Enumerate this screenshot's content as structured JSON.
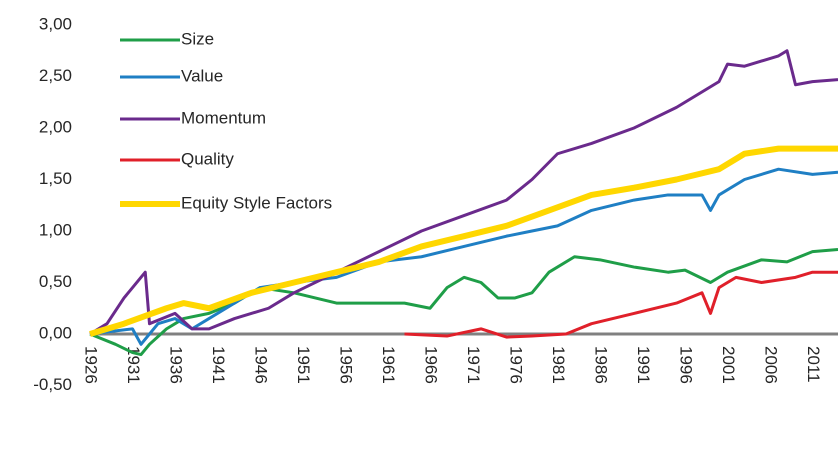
{
  "chart_data": {
    "type": "line",
    "xlim": [
      1926,
      2014
    ],
    "xticks": [
      1926,
      1931,
      1936,
      1941,
      1946,
      1951,
      1956,
      1961,
      1966,
      1971,
      1976,
      1981,
      1986,
      1991,
      1996,
      2001,
      2006,
      2011
    ],
    "ylim": [
      -0.5,
      3.0
    ],
    "yticks": [
      {
        "value": -0.5,
        "label": "-0,50"
      },
      {
        "value": 0,
        "label": "0,00"
      },
      {
        "value": 0.5,
        "label": "0,50"
      },
      {
        "value": 1.0,
        "label": "1,00"
      },
      {
        "value": 1.5,
        "label": "1,50"
      },
      {
        "value": 2.0,
        "label": "2,00"
      },
      {
        "value": 2.5,
        "label": "2,50"
      },
      {
        "value": 3.0,
        "label": "3,00"
      }
    ],
    "grid": false,
    "legend": "top-left",
    "series": [
      {
        "name": "Size",
        "color": "#1f9e48",
        "width": 3,
        "x": [
          1926,
          1929,
          1931,
          1932,
          1933,
          1935,
          1937,
          1940,
          1943,
          1946,
          1950,
          1955,
          1960,
          1963,
          1966,
          1968,
          1970,
          1972,
          1974,
          1976,
          1978,
          1980,
          1983,
          1986,
          1990,
          1994,
          1996,
          1999,
          2001,
          2005,
          2008,
          2011,
          2014
        ],
        "values": [
          0,
          -0.1,
          -0.18,
          -0.2,
          -0.1,
          0.05,
          0.15,
          0.2,
          0.3,
          0.45,
          0.4,
          0.3,
          0.3,
          0.3,
          0.25,
          0.45,
          0.55,
          0.5,
          0.35,
          0.35,
          0.4,
          0.6,
          0.75,
          0.72,
          0.65,
          0.6,
          0.62,
          0.5,
          0.6,
          0.72,
          0.7,
          0.8,
          0.82
        ]
      },
      {
        "name": "Value",
        "color": "#1f7fc4",
        "width": 3,
        "x": [
          1926,
          1931,
          1932,
          1934,
          1936,
          1938,
          1940,
          1943,
          1946,
          1950,
          1955,
          1960,
          1965,
          1970,
          1975,
          1978,
          1981,
          1985,
          1990,
          1994,
          1998,
          1999,
          2000,
          2003,
          2007,
          2011,
          2014
        ],
        "values": [
          0,
          0.05,
          -0.1,
          0.1,
          0.15,
          0.05,
          0.15,
          0.3,
          0.45,
          0.5,
          0.55,
          0.7,
          0.75,
          0.85,
          0.95,
          1.0,
          1.05,
          1.2,
          1.3,
          1.35,
          1.35,
          1.2,
          1.35,
          1.5,
          1.6,
          1.55,
          1.57
        ]
      },
      {
        "name": "Momentum",
        "color": "#6a2a8c",
        "width": 3,
        "x": [
          1926,
          1928,
          1930,
          1932,
          1932.5,
          1933,
          1936,
          1938,
          1940,
          1943,
          1947,
          1950,
          1955,
          1960,
          1965,
          1970,
          1975,
          1978,
          1981,
          1985,
          1990,
          1995,
          2000,
          2001,
          2003,
          2007,
          2008,
          2009,
          2011,
          2014
        ],
        "values": [
          0,
          0.1,
          0.35,
          0.55,
          0.6,
          0.1,
          0.2,
          0.05,
          0.05,
          0.15,
          0.25,
          0.4,
          0.6,
          0.8,
          1.0,
          1.15,
          1.3,
          1.5,
          1.75,
          1.85,
          2.0,
          2.2,
          2.45,
          2.62,
          2.6,
          2.7,
          2.75,
          2.42,
          2.45,
          2.47
        ]
      },
      {
        "name": "Quality",
        "color": "#e0202a",
        "width": 3,
        "x": [
          1963,
          1968,
          1972,
          1975,
          1978,
          1982,
          1985,
          1990,
          1995,
          1998,
          1999,
          2000,
          2002,
          2005,
          2009,
          2011,
          2014
        ],
        "values": [
          0,
          -0.02,
          0.05,
          -0.03,
          -0.02,
          0.0,
          0.1,
          0.2,
          0.3,
          0.4,
          0.2,
          0.45,
          0.55,
          0.5,
          0.55,
          0.6,
          0.6
        ]
      },
      {
        "name": "Equity Style Factors",
        "color": "#ffd700",
        "width": 6,
        "x": [
          1926,
          1930,
          1935,
          1937,
          1940,
          1945,
          1950,
          1955,
          1960,
          1965,
          1970,
          1975,
          1980,
          1985,
          1990,
          1995,
          2000,
          2003,
          2007,
          2014
        ],
        "values": [
          0,
          0.1,
          0.25,
          0.3,
          0.25,
          0.4,
          0.5,
          0.6,
          0.7,
          0.85,
          0.95,
          1.05,
          1.2,
          1.35,
          1.42,
          1.5,
          1.6,
          1.75,
          1.8,
          1.8
        ]
      }
    ]
  }
}
